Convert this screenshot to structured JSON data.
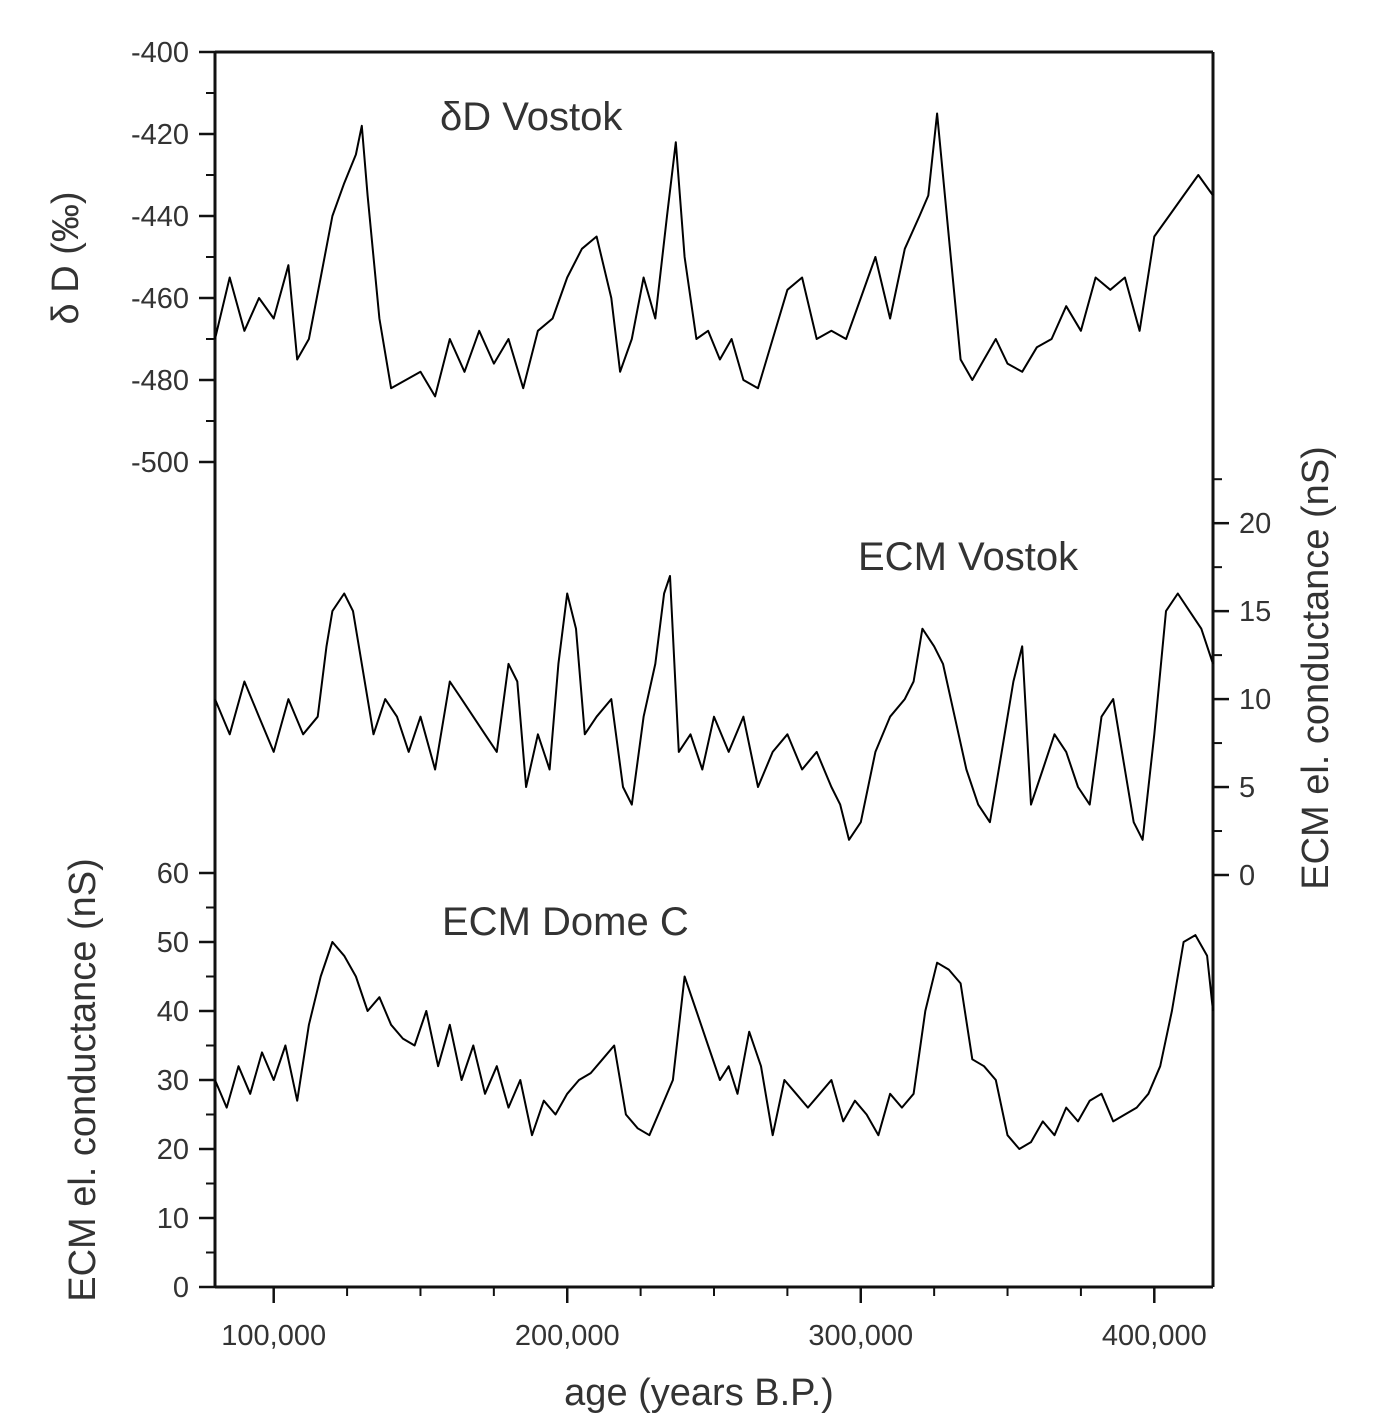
{
  "chart_data": {
    "type": "line",
    "x_axis": {
      "label": "age (years B.P.)",
      "range": [
        80000,
        420000
      ],
      "ticks": [
        100000,
        200000,
        300000,
        400000
      ],
      "tick_labels": [
        "100,000",
        "200,000",
        "300,000",
        "400,000"
      ]
    },
    "panels": [
      {
        "id": "dD",
        "label": "δD Vostok",
        "axis_side": "left",
        "y_axis_label": "δ D (‰)",
        "y_range": [
          -400,
          -500
        ],
        "y_ticks": [
          -400,
          -420,
          -440,
          -460,
          -480,
          -500
        ],
        "y_tick_labels": [
          "-400",
          "-420",
          "-440",
          "-460",
          "-480",
          "-500"
        ],
        "x": [
          80000,
          85000,
          90000,
          95000,
          100000,
          105000,
          108000,
          112000,
          116000,
          120000,
          124000,
          128000,
          130000,
          132000,
          136000,
          140000,
          145000,
          150000,
          155000,
          160000,
          165000,
          170000,
          175000,
          180000,
          185000,
          190000,
          195000,
          200000,
          205000,
          210000,
          215000,
          218000,
          222000,
          226000,
          230000,
          234000,
          237000,
          240000,
          244000,
          248000,
          252000,
          256000,
          260000,
          265000,
          270000,
          275000,
          280000,
          285000,
          290000,
          295000,
          300000,
          305000,
          310000,
          315000,
          320000,
          323000,
          326000,
          330000,
          334000,
          338000,
          342000,
          346000,
          350000,
          355000,
          360000,
          365000,
          370000,
          375000,
          380000,
          385000,
          390000,
          395000,
          400000,
          405000,
          410000,
          415000,
          420000
        ],
        "values": [
          -470,
          -455,
          -468,
          -460,
          -465,
          -452,
          -475,
          -470,
          -455,
          -440,
          -432,
          -425,
          -418,
          -435,
          -465,
          -482,
          -480,
          -478,
          -484,
          -470,
          -478,
          -468,
          -476,
          -470,
          -482,
          -468,
          -465,
          -455,
          -448,
          -445,
          -460,
          -478,
          -470,
          -455,
          -465,
          -440,
          -422,
          -450,
          -470,
          -468,
          -475,
          -470,
          -480,
          -482,
          -470,
          -458,
          -455,
          -470,
          -468,
          -470,
          -460,
          -450,
          -465,
          -448,
          -440,
          -435,
          -415,
          -445,
          -475,
          -480,
          -475,
          -470,
          -476,
          -478,
          -472,
          -470,
          -462,
          -468,
          -455,
          -458,
          -455,
          -468,
          -445,
          -440,
          -435,
          -430,
          -435
        ]
      },
      {
        "id": "ecm_vostok",
        "label": "ECM Vostok",
        "axis_side": "right",
        "y_axis_label": "ECM el. conductance (nS)",
        "y_range": [
          0,
          22
        ],
        "y_ticks": [
          0,
          5,
          10,
          15,
          20
        ],
        "y_tick_labels": [
          "0",
          "5",
          "10",
          "15",
          "20"
        ],
        "x": [
          80000,
          85000,
          90000,
          95000,
          100000,
          105000,
          110000,
          115000,
          118000,
          120000,
          124000,
          127000,
          130000,
          134000,
          138000,
          142000,
          146000,
          150000,
          155000,
          160000,
          164000,
          168000,
          172000,
          176000,
          180000,
          183000,
          186000,
          190000,
          194000,
          197000,
          200000,
          203000,
          206000,
          210000,
          215000,
          219000,
          222000,
          226000,
          230000,
          233000,
          235000,
          238000,
          242000,
          246000,
          250000,
          255000,
          260000,
          265000,
          270000,
          275000,
          280000,
          285000,
          290000,
          293000,
          296000,
          300000,
          305000,
          310000,
          315000,
          318000,
          321000,
          325000,
          328000,
          332000,
          336000,
          340000,
          344000,
          348000,
          352000,
          355000,
          358000,
          362000,
          366000,
          370000,
          374000,
          378000,
          382000,
          386000,
          390000,
          393000,
          396000,
          400000,
          404000,
          408000,
          412000,
          416000,
          420000
        ],
        "values": [
          10,
          8,
          11,
          9,
          7,
          10,
          8,
          9,
          13,
          15,
          16,
          15,
          12,
          8,
          10,
          9,
          7,
          9,
          6,
          11,
          10,
          9,
          8,
          7,
          12,
          11,
          5,
          8,
          6,
          12,
          16,
          14,
          8,
          9,
          10,
          5,
          4,
          9,
          12,
          16,
          17,
          7,
          8,
          6,
          9,
          7,
          9,
          5,
          7,
          8,
          6,
          7,
          5,
          4,
          2,
          3,
          7,
          9,
          10,
          11,
          14,
          13,
          12,
          9,
          6,
          4,
          3,
          7,
          11,
          13,
          4,
          6,
          8,
          7,
          5,
          4,
          9,
          10,
          6,
          3,
          2,
          8,
          15,
          16,
          15,
          14,
          12
        ]
      },
      {
        "id": "ecm_domec",
        "label": "ECM Dome C",
        "axis_side": "left",
        "y_axis_label": "ECM el. conductance (nS)",
        "y_range": [
          0,
          60
        ],
        "y_ticks": [
          0,
          10,
          20,
          30,
          40,
          50,
          60
        ],
        "y_tick_labels": [
          "0",
          "10",
          "20",
          "30",
          "40",
          "50",
          "60"
        ],
        "x": [
          80000,
          84000,
          88000,
          92000,
          96000,
          100000,
          104000,
          108000,
          112000,
          116000,
          120000,
          124000,
          128000,
          132000,
          136000,
          140000,
          144000,
          148000,
          152000,
          156000,
          160000,
          164000,
          168000,
          172000,
          176000,
          180000,
          184000,
          188000,
          192000,
          196000,
          200000,
          204000,
          208000,
          212000,
          216000,
          220000,
          224000,
          228000,
          232000,
          236000,
          240000,
          244000,
          248000,
          252000,
          255000,
          258000,
          262000,
          266000,
          270000,
          274000,
          278000,
          282000,
          286000,
          290000,
          294000,
          298000,
          302000,
          306000,
          310000,
          314000,
          318000,
          322000,
          326000,
          330000,
          334000,
          338000,
          342000,
          346000,
          350000,
          354000,
          358000,
          362000,
          366000,
          370000,
          374000,
          378000,
          382000,
          386000,
          390000,
          394000,
          398000,
          402000,
          406000,
          410000,
          414000,
          418000,
          420000
        ],
        "values": [
          30,
          26,
          32,
          28,
          34,
          30,
          35,
          27,
          38,
          45,
          50,
          48,
          45,
          40,
          42,
          38,
          36,
          35,
          40,
          32,
          38,
          30,
          35,
          28,
          32,
          26,
          30,
          22,
          27,
          25,
          28,
          30,
          31,
          33,
          35,
          25,
          23,
          22,
          26,
          30,
          45,
          40,
          35,
          30,
          32,
          28,
          37,
          32,
          22,
          30,
          28,
          26,
          28,
          30,
          24,
          27,
          25,
          22,
          28,
          26,
          28,
          40,
          47,
          46,
          44,
          33,
          32,
          30,
          22,
          20,
          21,
          24,
          22,
          26,
          24,
          27,
          28,
          24,
          25,
          26,
          28,
          32,
          40,
          50,
          51,
          48,
          40
        ]
      }
    ]
  }
}
